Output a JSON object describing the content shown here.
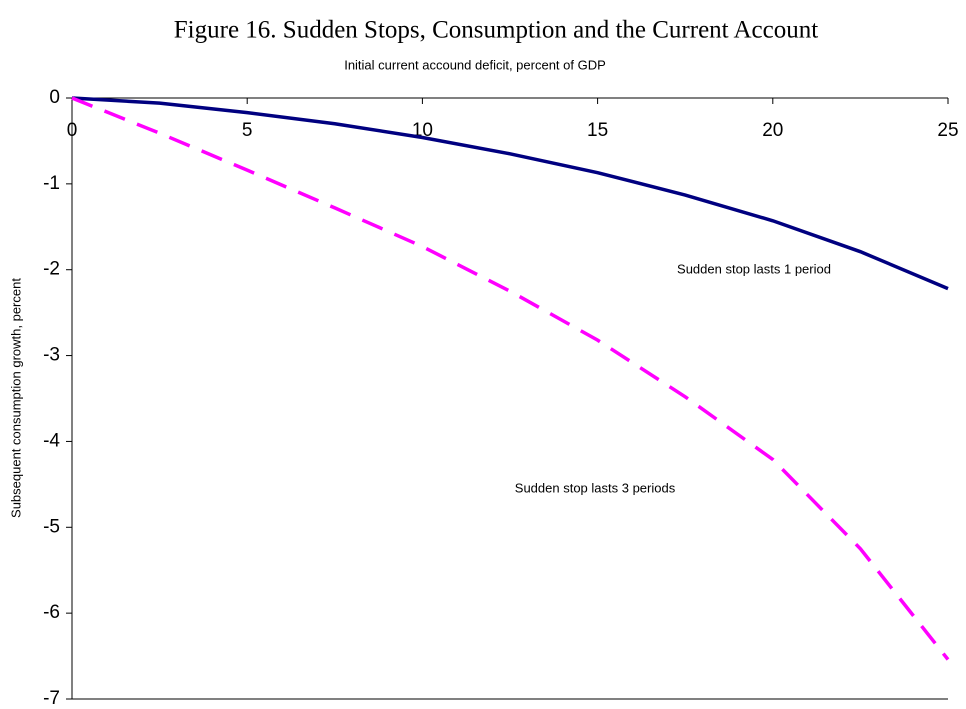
{
  "chart_data": {
    "type": "line",
    "title": "Figure 16. Sudden Stops, Consumption and the Current Account",
    "x_label": "Initial current accound deficit, percent of GDP",
    "y_label": "Subsequent consumption growth, percent",
    "x": [
      0,
      2.5,
      5,
      7.5,
      10,
      12.5,
      15,
      17.5,
      20,
      22.5,
      25
    ],
    "series": [
      {
        "name": "Sudden stop lasts 1 period",
        "color": "#000080",
        "dashed": false,
        "values": [
          0,
          -0.06,
          -0.17,
          -0.3,
          -0.46,
          -0.65,
          -0.87,
          -1.13,
          -1.43,
          -1.79,
          -2.22
        ]
      },
      {
        "name": "Sudden stop lasts 3 periods",
        "color": "#ff00ff",
        "dashed": true,
        "values": [
          0,
          -0.41,
          -0.84,
          -1.28,
          -1.73,
          -2.25,
          -2.82,
          -3.48,
          -4.21,
          -5.25,
          -6.54
        ]
      }
    ],
    "xlim": [
      0,
      25
    ],
    "xticks": [
      0,
      5,
      10,
      15,
      20,
      25
    ],
    "ylim": [
      -7,
      0
    ],
    "yticks": [
      0,
      -1,
      -2,
      -3,
      -4,
      -5,
      -6,
      -7
    ]
  }
}
